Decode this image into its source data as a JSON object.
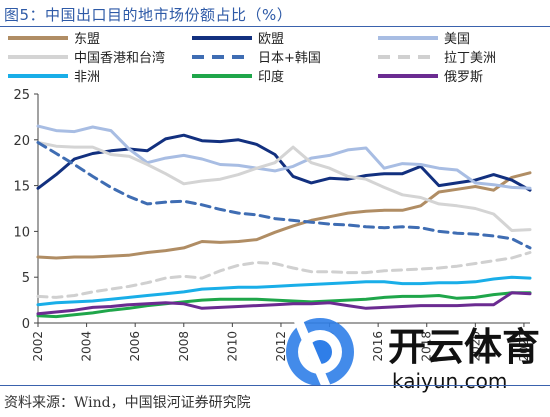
{
  "title": "图5：中国出口目的地市场份额占比（%）",
  "source": "资料来源：Wind，中国银河证券研究院",
  "watermark": {
    "brand": "开云体育",
    "url": "kaiyun.com"
  },
  "chart_data": {
    "type": "line",
    "title": "",
    "xlabel": "",
    "ylabel": "",
    "ylim": [
      0,
      25
    ],
    "yticks": [
      0,
      5,
      10,
      15,
      20,
      25
    ],
    "xticks": [
      "2002",
      "2004",
      "2006",
      "2008",
      "2010",
      "2012",
      "2014",
      "2016",
      "2018",
      "2020",
      "2022"
    ],
    "x": [
      2002.0,
      2002.75,
      2003.5,
      2004.25,
      2005.0,
      2005.75,
      2006.5,
      2007.25,
      2008.0,
      2008.75,
      2009.5,
      2010.25,
      2011.0,
      2011.75,
      2012.5,
      2013.25,
      2014.0,
      2014.75,
      2015.5,
      2016.25,
      2017.0,
      2017.75,
      2018.5,
      2019.25,
      2020.0,
      2020.75,
      2021.5,
      2022.25
    ],
    "grid": false,
    "legend_position": "top",
    "series": [
      {
        "name": "东盟",
        "color": "#b08d64",
        "dash": "solid",
        "values": [
          7.2,
          7.1,
          7.2,
          7.2,
          7.3,
          7.4,
          7.7,
          7.9,
          8.2,
          8.9,
          8.8,
          8.9,
          9.1,
          9.9,
          10.6,
          11.2,
          11.6,
          12.0,
          12.2,
          12.3,
          12.3,
          12.8,
          14.3,
          14.6,
          14.9,
          14.5,
          15.9,
          16.4
        ]
      },
      {
        "name": "欧盟",
        "color": "#12307f",
        "dash": "solid",
        "values": [
          14.7,
          16.2,
          17.9,
          18.5,
          18.8,
          19.0,
          18.8,
          20.1,
          20.5,
          19.9,
          19.8,
          20.0,
          19.5,
          18.4,
          16.0,
          15.3,
          15.8,
          15.7,
          16.1,
          16.3,
          16.3,
          17.1,
          15.0,
          15.3,
          15.6,
          16.2,
          15.6,
          14.5
        ]
      },
      {
        "name": "美国",
        "color": "#a8bde3",
        "dash": "solid",
        "values": [
          21.5,
          21.0,
          20.9,
          21.4,
          21.0,
          19.0,
          17.5,
          18.0,
          18.3,
          17.9,
          17.3,
          17.2,
          16.9,
          16.6,
          17.1,
          18.0,
          18.3,
          18.9,
          19.1,
          16.9,
          17.4,
          17.3,
          16.9,
          16.7,
          15.3,
          15.1,
          14.8,
          14.7
        ]
      },
      {
        "name": "中国香港和台湾",
        "color": "#d4d4d4",
        "dash": "solid",
        "values": [
          19.7,
          19.3,
          19.2,
          19.2,
          18.4,
          18.2,
          17.3,
          16.3,
          15.2,
          15.5,
          15.7,
          16.2,
          16.9,
          17.5,
          19.2,
          17.5,
          16.9,
          16.0,
          15.7,
          14.8,
          14.0,
          13.7,
          13.0,
          12.8,
          12.5,
          11.9,
          10.1,
          10.2
        ]
      },
      {
        "name": "日本+韩国",
        "color": "#3f6db3",
        "dash": "dash",
        "values": [
          19.7,
          18.5,
          17.3,
          16.0,
          14.8,
          13.8,
          13.0,
          13.2,
          13.3,
          12.9,
          12.4,
          12.0,
          11.8,
          11.4,
          11.2,
          11.0,
          10.8,
          10.7,
          10.5,
          10.4,
          10.5,
          10.4,
          10.0,
          9.8,
          9.7,
          9.5,
          9.2,
          8.2
        ]
      },
      {
        "name": "拉丁美洲",
        "color": "#d0d0d0",
        "dash": "dash",
        "values": [
          2.9,
          2.8,
          3.0,
          3.4,
          3.7,
          4.0,
          4.4,
          4.9,
          5.1,
          4.9,
          5.7,
          6.3,
          6.6,
          6.5,
          6.0,
          5.6,
          5.6,
          5.5,
          5.5,
          5.7,
          5.8,
          5.9,
          6.0,
          6.2,
          6.5,
          6.8,
          7.1,
          7.7
        ]
      },
      {
        "name": "非洲",
        "color": "#19aee8",
        "dash": "solid",
        "values": [
          2.0,
          2.2,
          2.3,
          2.4,
          2.6,
          2.8,
          3.0,
          3.2,
          3.4,
          3.7,
          3.8,
          3.9,
          3.9,
          4.0,
          4.1,
          4.2,
          4.3,
          4.4,
          4.5,
          4.5,
          4.3,
          4.3,
          4.4,
          4.4,
          4.5,
          4.8,
          5.0,
          4.9
        ]
      },
      {
        "name": "印度",
        "color": "#1fa64a",
        "dash": "solid",
        "values": [
          0.8,
          0.7,
          0.9,
          1.1,
          1.4,
          1.6,
          1.9,
          2.1,
          2.3,
          2.5,
          2.6,
          2.6,
          2.6,
          2.5,
          2.4,
          2.3,
          2.4,
          2.5,
          2.6,
          2.8,
          2.9,
          2.9,
          3.0,
          2.7,
          2.8,
          3.1,
          3.3,
          3.3
        ]
      },
      {
        "name": "俄罗斯",
        "color": "#6b2b91",
        "dash": "solid",
        "values": [
          1.0,
          1.2,
          1.4,
          1.7,
          1.8,
          2.0,
          2.1,
          2.2,
          2.1,
          1.6,
          1.7,
          1.8,
          1.9,
          2.0,
          2.1,
          2.1,
          2.2,
          1.9,
          1.6,
          1.7,
          1.8,
          1.9,
          1.9,
          1.9,
          2.0,
          2.0,
          3.3,
          3.2
        ]
      }
    ]
  }
}
